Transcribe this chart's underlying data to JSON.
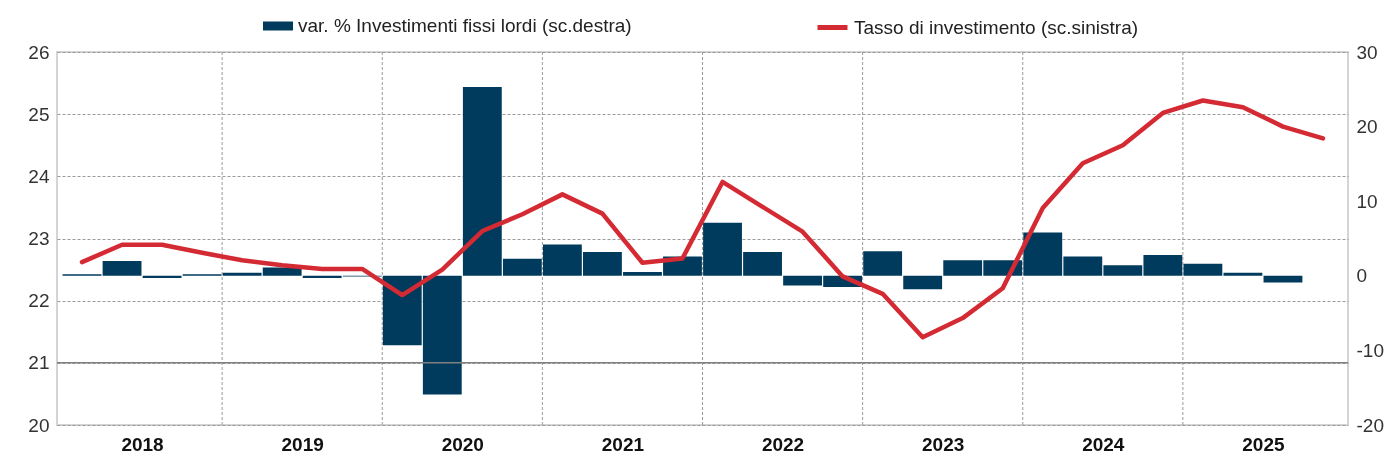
{
  "chart_data": {
    "type": "bar",
    "x": [
      2018.125,
      2018.375,
      2018.625,
      2018.875,
      2019.125,
      2019.375,
      2019.625,
      2019.875,
      2020.125,
      2020.375,
      2020.625,
      2020.875,
      2021.125,
      2021.375,
      2021.625,
      2021.875,
      2022.125,
      2022.375,
      2022.625,
      2022.875,
      2023.125,
      2023.375,
      2023.625,
      2023.875,
      2024.125,
      2024.375,
      2024.625,
      2024.875,
      2025.125,
      2025.375,
      2025.625,
      2025.875
    ],
    "xlim": [
      2018,
      2026
    ],
    "xticks": [
      {
        "value": 2018.5,
        "label": "2018"
      },
      {
        "value": 2019,
        "label": null
      },
      {
        "value": 2019.5,
        "label": "2019"
      },
      {
        "value": 2020,
        "label": null
      },
      {
        "value": 2020.5,
        "label": "2020"
      },
      {
        "value": 2021,
        "label": null
      },
      {
        "value": 2021.5,
        "label": "2021"
      },
      {
        "value": 2022,
        "label": null
      },
      {
        "value": 2022.5,
        "label": "2022"
      },
      {
        "value": 2023,
        "label": null
      },
      {
        "value": 2023.5,
        "label": "2023"
      },
      {
        "value": 2024,
        "label": null
      },
      {
        "value": 2024.5,
        "label": "2024"
      },
      {
        "value": 2025,
        "label": null
      },
      {
        "value": 2025.5,
        "label": "2025"
      }
    ],
    "ylim": [
      20,
      26
    ],
    "yticks": [
      20,
      21,
      22,
      23,
      24,
      25,
      26
    ],
    "y2lim": [
      -20,
      30
    ],
    "y2ticks": [
      -20,
      -10,
      0,
      10,
      20,
      30
    ],
    "series": [
      {
        "name": "var. % Investimenti fissi lordi (sc.destra)",
        "axis": "y2",
        "color": "#003a5c",
        "values": [
          0.2,
          2.0,
          -0.3,
          0.2,
          0.4,
          1.1,
          -0.3,
          -0.1,
          -9.3,
          -15.9,
          25.3,
          2.3,
          4.2,
          3.2,
          0.5,
          2.6,
          7.1,
          3.2,
          -1.3,
          -1.5,
          3.3,
          -1.8,
          2.1,
          2.1,
          5.8,
          2.6,
          1.4,
          2.8,
          1.6,
          0.4,
          -0.9,
          null
        ]
      },
      {
        "name": "Tasso di investimento (sc.sinistra)",
        "type": "line",
        "color": "#d42a33",
        "values": [
          22.62,
          22.9,
          22.9,
          22.77,
          22.65,
          22.57,
          22.51,
          22.51,
          22.09,
          22.5,
          23.12,
          23.39,
          23.71,
          23.4,
          22.61,
          22.68,
          23.91,
          23.51,
          23.11,
          22.39,
          22.11,
          21.41,
          21.72,
          22.2,
          23.49,
          24.21,
          24.5,
          25.02,
          25.22,
          25.11,
          24.8,
          24.61
        ]
      }
    ],
    "ref_lines": [
      {
        "axis": "y",
        "value": 21,
        "color": "#808080"
      }
    ],
    "grid": true,
    "legend": "top"
  }
}
